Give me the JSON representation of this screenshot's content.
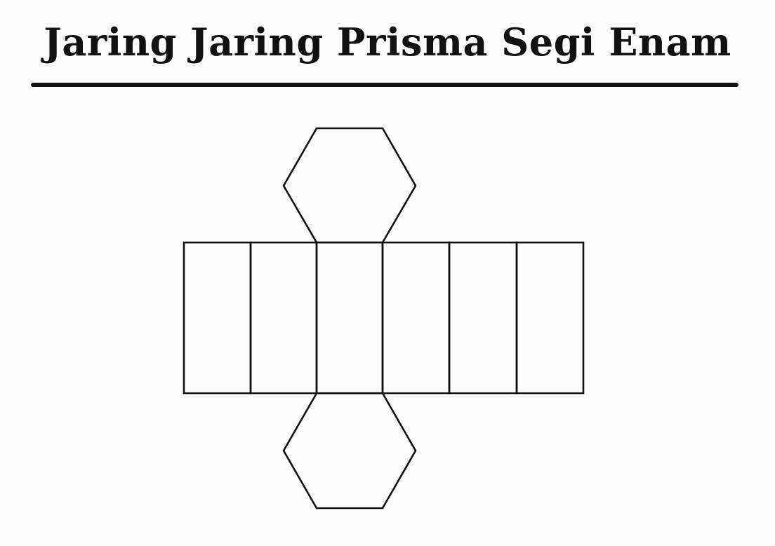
{
  "title": "Jaring Jaring Prisma Segi Enam",
  "colors": {
    "ink": "#111111",
    "background": "#fdfdfd"
  },
  "net": {
    "lateral_faces": 6,
    "hexagon_bases": 2
  }
}
